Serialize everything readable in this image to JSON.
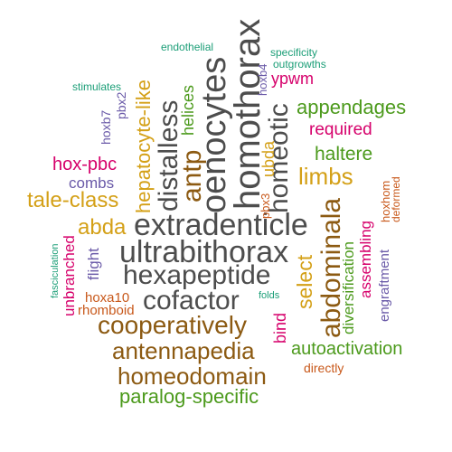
{
  "colors": {
    "gray": "#4d4d4d",
    "brown": "#8c5a12",
    "green": "#4c9a1c",
    "orange": "#d4a017",
    "magenta": "#d6006b",
    "purple": "#6a5aa8",
    "teal": "#1b9e77",
    "rust": "#c8581a"
  },
  "words": {
    "extradenticle": "extradenticle",
    "ultrabithorax": "ultrabithorax",
    "hexapeptide": "hexapeptide",
    "cofactor": "cofactor",
    "cooperatively": "cooperatively",
    "antennapedia": "antennapedia",
    "homeodomain": "homeodomain",
    "paralog_specific": "paralog-specific",
    "autoactivation": "autoactivation",
    "directly": "directly",
    "appendages": "appendages",
    "required": "required",
    "haltere": "haltere",
    "limbs": "limbs",
    "hox_pbc": "hox-pbc",
    "combs": "combs",
    "tale_class": "tale-class",
    "abda": "abda",
    "endothelial": "endothelial",
    "specificity": "specificity",
    "outgrowths": "outgrowths",
    "stimulates": "stimulates",
    "ypwm": "ypwm",
    "hoxa10": "hoxa10",
    "rhomboid": "rhomboid",
    "folds": "folds",
    "oenocytes": "oenocytes",
    "homothorax": "homothorax",
    "homeotic": "homeotic",
    "distalless": "distalless",
    "antp": "antp",
    "hepatocyte_like": "hepatocyte-like",
    "helices": "helices",
    "hoxb4": "hoxb4",
    "ubda": "ubda",
    "pbx3": "pbx3",
    "pbx2": "pbx2",
    "hoxb7": "hoxb7",
    "abdominala": "abdominala",
    "select": "select",
    "bind": "bind",
    "diversification": "diversification",
    "assembling": "assembling",
    "engraftment": "engraftment",
    "hoxhom": "hoxhom",
    "deformed": "deformed",
    "unbranched": "unbranched",
    "flight": "flight",
    "fasciculation": "fasciculation"
  }
}
